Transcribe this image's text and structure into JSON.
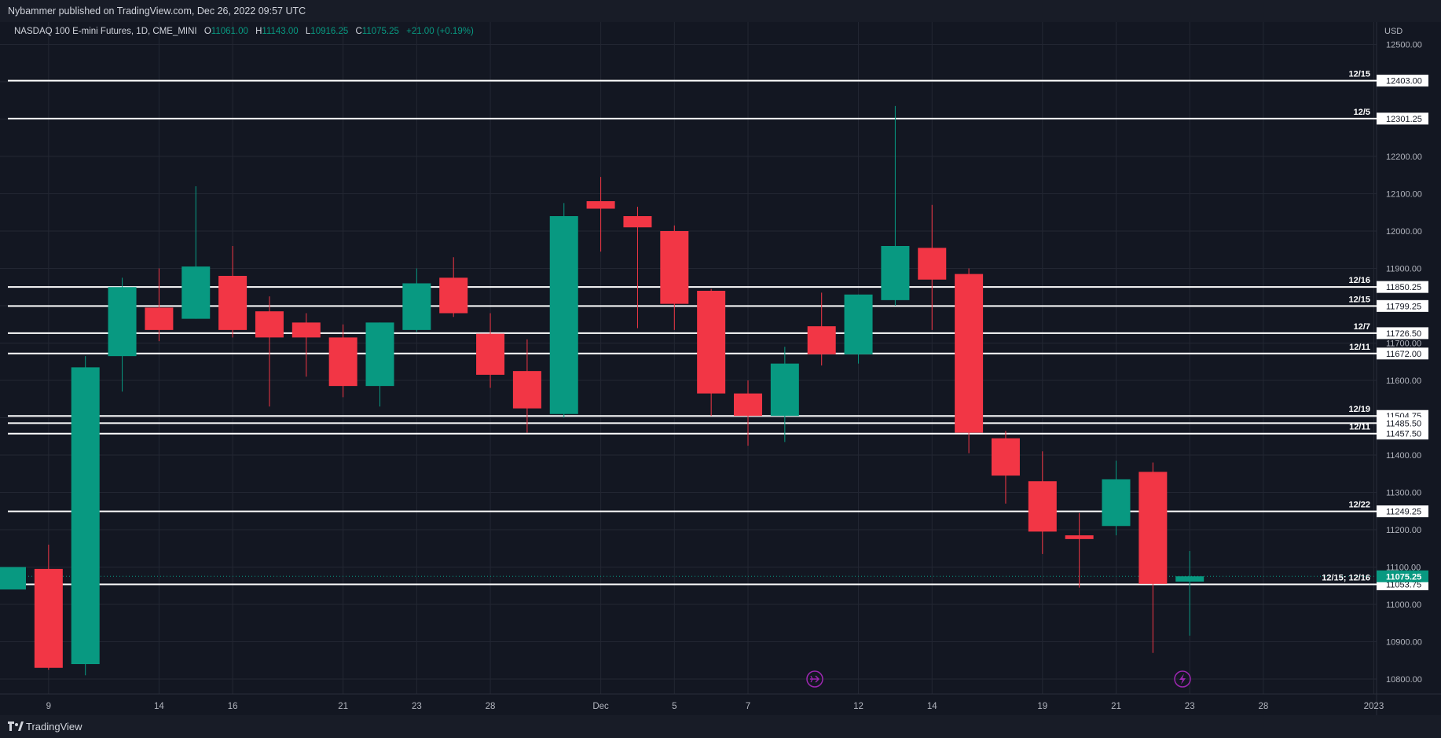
{
  "header": {
    "publisher": "Nybammer published on TradingView.com, Dec 26, 2022 09:57 UTC"
  },
  "footer": {
    "brand": "TradingView"
  },
  "legend": {
    "symbol": "NASDAQ 100 E-mini Futures, 1D, CME_MINI",
    "o_label": "O",
    "o": "11061.00",
    "h_label": "H",
    "h": "11143.00",
    "l_label": "L",
    "l": "10916.25",
    "c_label": "C",
    "c": "11075.25",
    "change": "+21.00 (+0.19%)"
  },
  "colors": {
    "up": "#089981",
    "down": "#f23645",
    "bg": "#131722",
    "grid": "#232733",
    "text": "#b2b5be",
    "line": "#ffffff",
    "event": "#9c27b0"
  },
  "chart_data": {
    "type": "candlestick",
    "currency": "USD",
    "ylim": [
      10760,
      12560
    ],
    "y_ticks": [
      10800,
      10900,
      11000,
      11100,
      11200,
      11300,
      11400,
      11500,
      11600,
      11700,
      11800,
      11900,
      12000,
      12100,
      12200,
      12300,
      12400,
      12500
    ],
    "y_tick_labels": [
      "10800.00",
      "10900.00",
      "11000.00",
      "11100.00",
      "11200.00",
      "11300.00",
      "11400.00",
      "11500.00",
      "11600.00",
      "11700.00",
      "11800.00",
      "11900.00",
      "12000.00",
      "12100.00",
      "12200.00",
      "12300.00",
      "12400.00",
      "12500.00"
    ],
    "x_ticks": [
      {
        "label": "9",
        "i": 1
      },
      {
        "label": "14",
        "i": 4
      },
      {
        "label": "16",
        "i": 6
      },
      {
        "label": "21",
        "i": 9
      },
      {
        "label": "23",
        "i": 11
      },
      {
        "label": "28",
        "i": 13
      },
      {
        "label": "Dec",
        "i": 16
      },
      {
        "label": "5",
        "i": 18
      },
      {
        "label": "7",
        "i": 20
      },
      {
        "label": "12",
        "i": 23
      },
      {
        "label": "14",
        "i": 25
      },
      {
        "label": "19",
        "i": 28
      },
      {
        "label": "21",
        "i": 30
      },
      {
        "label": "23",
        "i": 32
      },
      {
        "label": "28",
        "i": 34
      },
      {
        "label": "2023",
        "i": 37
      }
    ],
    "candles": [
      {
        "o": 11040,
        "h": 11100,
        "l": 11040,
        "c": 11100
      },
      {
        "o": 11095,
        "h": 11160,
        "l": 10825,
        "c": 10830
      },
      {
        "o": 10840,
        "h": 11665,
        "l": 10810,
        "c": 11635
      },
      {
        "o": 11665,
        "h": 11875,
        "l": 11570,
        "c": 11850
      },
      {
        "o": 11795,
        "h": 11900,
        "l": 11705,
        "c": 11735
      },
      {
        "o": 11765,
        "h": 12120,
        "l": 11765,
        "c": 11905
      },
      {
        "o": 11880,
        "h": 11960,
        "l": 11715,
        "c": 11735
      },
      {
        "o": 11785,
        "h": 11825,
        "l": 11530,
        "c": 11715
      },
      {
        "o": 11755,
        "h": 11780,
        "l": 11610,
        "c": 11715
      },
      {
        "o": 11715,
        "h": 11750,
        "l": 11555,
        "c": 11585
      },
      {
        "o": 11585,
        "h": 11755,
        "l": 11530,
        "c": 11755
      },
      {
        "o": 11735,
        "h": 11900,
        "l": 11730,
        "c": 11860
      },
      {
        "o": 11875,
        "h": 11930,
        "l": 11770,
        "c": 11780
      },
      {
        "o": 11725,
        "h": 11780,
        "l": 11580,
        "c": 11615
      },
      {
        "o": 11625,
        "h": 11710,
        "l": 11460,
        "c": 11525
      },
      {
        "o": 11510,
        "h": 12075,
        "l": 11500,
        "c": 12040
      },
      {
        "o": 12080,
        "h": 12145,
        "l": 11945,
        "c": 12060
      },
      {
        "o": 12040,
        "h": 12065,
        "l": 11740,
        "c": 12010
      },
      {
        "o": 12000,
        "h": 12015,
        "l": 11735,
        "c": 11805
      },
      {
        "o": 11840,
        "h": 11845,
        "l": 11505,
        "c": 11565
      },
      {
        "o": 11565,
        "h": 11600,
        "l": 11425,
        "c": 11505
      },
      {
        "o": 11505,
        "h": 11690,
        "l": 11435,
        "c": 11645
      },
      {
        "o": 11745,
        "h": 11835,
        "l": 11640,
        "c": 11670
      },
      {
        "o": 11670,
        "h": 11830,
        "l": 11645,
        "c": 11830
      },
      {
        "o": 11815,
        "h": 12335,
        "l": 11800,
        "c": 11960
      },
      {
        "o": 11955,
        "h": 12070,
        "l": 11735,
        "c": 11870
      },
      {
        "o": 11885,
        "h": 11900,
        "l": 11405,
        "c": 11460
      },
      {
        "o": 11445,
        "h": 11465,
        "l": 11270,
        "c": 11345
      },
      {
        "o": 11330,
        "h": 11410,
        "l": 11135,
        "c": 11195
      },
      {
        "o": 11185,
        "h": 11245,
        "l": 11045,
        "c": 11175
      },
      {
        "o": 11210,
        "h": 11385,
        "l": 11185,
        "c": 11335
      },
      {
        "o": 11355,
        "h": 11380,
        "l": 10870,
        "c": 11055
      },
      {
        "o": 11061,
        "h": 11143,
        "l": 10916.25,
        "c": 11075.25
      }
    ],
    "horizontal_levels": [
      {
        "label": "12/15",
        "value": 12403.0,
        "price_label": "12403.00"
      },
      {
        "label": "12/5",
        "value": 12301.25,
        "price_label": "12301.25"
      },
      {
        "label": "12/16",
        "value": 11850.25,
        "price_label": "11850.25"
      },
      {
        "label": "12/15",
        "value": 11799.25,
        "price_label": "11799.25"
      },
      {
        "label": "12/7",
        "value": 11726.5,
        "price_label": "11726.50"
      },
      {
        "label": "12/11",
        "value": 11672.0,
        "price_label": "11672.00"
      },
      {
        "label": "12/19",
        "value": 11504.75,
        "price_label": "11504.75"
      },
      {
        "label": "",
        "value": 11485.5,
        "price_label": "11485.50"
      },
      {
        "label": "12/11",
        "value": 11457.5,
        "price_label": "11457.50"
      },
      {
        "label": "12/22",
        "value": 11249.25,
        "price_label": "11249.25"
      },
      {
        "label": "12/15; 12/16",
        "value": 11053.75,
        "price_label": "11053.75"
      }
    ],
    "last_price": {
      "value": 11075.25,
      "price_label": "11075.25"
    },
    "hidden_axis_labels": [
      "11700.00"
    ]
  }
}
